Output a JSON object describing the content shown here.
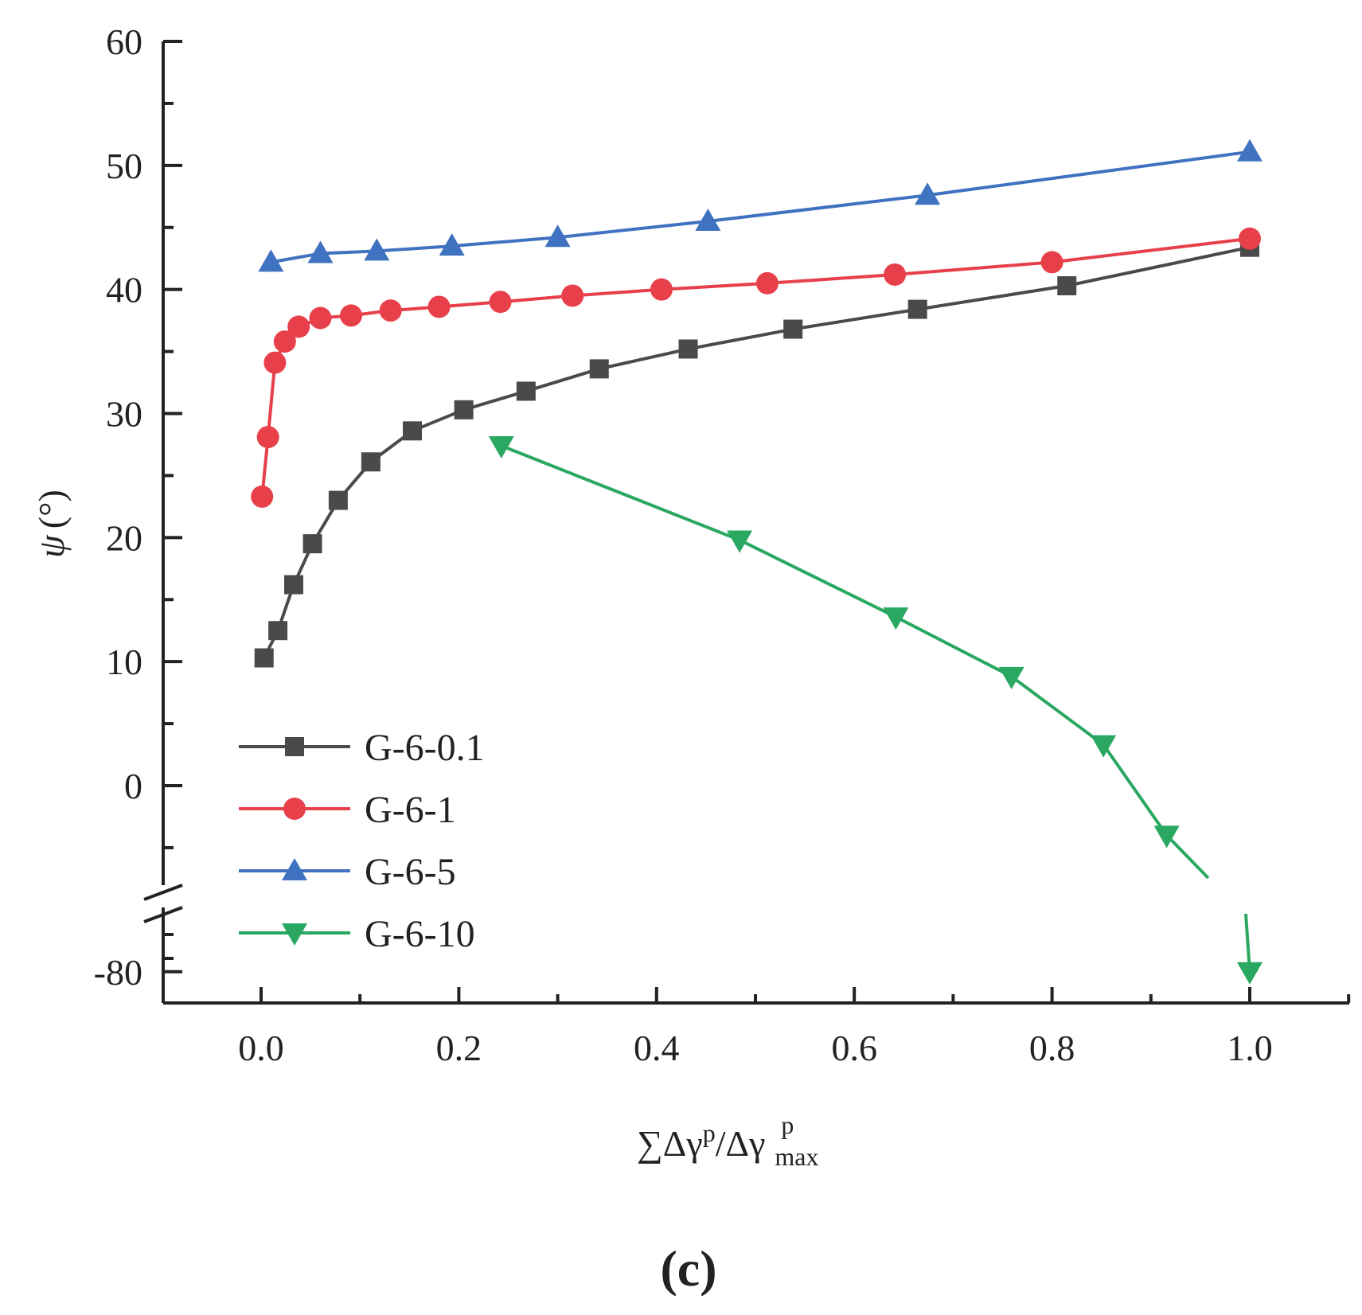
{
  "chart_data": {
    "type": "line",
    "title": "",
    "panel_label": "(c)",
    "xlabel": {
      "sum": "∑Δγ",
      "sup1": "p",
      "slash": "/Δγ",
      "sup2": "p",
      "sub2": "max"
    },
    "ylabel": {
      "symbol": "ψ",
      "unit": "(°)"
    },
    "xlim": [
      -0.1,
      1.1
    ],
    "ylim_upper": [
      -8,
      60
    ],
    "axis_break": {
      "shown_value": -80,
      "drawn_as": -15
    },
    "x_ticks": [
      "0.0",
      "0.2",
      "0.4",
      "0.6",
      "0.8",
      "1.0"
    ],
    "x_tick_values": [
      0,
      0.2,
      0.4,
      0.6,
      0.8,
      1.0
    ],
    "y_ticks": [
      "60",
      "50",
      "40",
      "30",
      "20",
      "10",
      "0",
      "-80"
    ],
    "y_tick_values": [
      60,
      50,
      40,
      30,
      20,
      10,
      0,
      -15
    ],
    "legend_position": "bottom-left",
    "series": [
      {
        "name": "G-6-0.1",
        "color": "#4a4a4a",
        "marker": "square",
        "x": [
          0.003,
          0.017,
          0.033,
          0.052,
          0.078,
          0.111,
          0.153,
          0.205,
          0.268,
          0.342,
          0.432,
          0.538,
          0.664,
          0.815,
          1.0
        ],
        "y": [
          10.3,
          12.5,
          16.2,
          19.5,
          23.0,
          26.1,
          28.6,
          30.3,
          31.8,
          33.6,
          35.2,
          36.8,
          38.4,
          40.3,
          43.4
        ]
      },
      {
        "name": "G-6-1",
        "color": "#e8404a",
        "marker": "circle",
        "x": [
          0.001,
          0.007,
          0.014,
          0.024,
          0.038,
          0.06,
          0.091,
          0.131,
          0.18,
          0.242,
          0.315,
          0.405,
          0.512,
          0.641,
          0.8,
          1.0
        ],
        "y": [
          23.3,
          28.1,
          34.1,
          35.8,
          37.0,
          37.7,
          37.9,
          38.3,
          38.6,
          39.0,
          39.5,
          40.0,
          40.5,
          41.2,
          42.2,
          44.1
        ]
      },
      {
        "name": "G-6-5",
        "color": "#3f72c0",
        "marker": "triangle-up",
        "x": [
          0.01,
          0.06,
          0.117,
          0.193,
          0.3,
          0.452,
          0.674,
          1.0
        ],
        "y": [
          42.2,
          42.9,
          43.1,
          43.5,
          44.2,
          45.5,
          47.6,
          51.1
        ]
      },
      {
        "name": "G-6-10",
        "color": "#2aa861",
        "marker": "triangle-down",
        "x": [
          0.243,
          0.484,
          0.642,
          0.759,
          0.852,
          0.916,
          1.0
        ],
        "y": [
          27.4,
          19.8,
          13.6,
          8.8,
          3.3,
          -4.0,
          -80.0
        ]
      }
    ]
  }
}
